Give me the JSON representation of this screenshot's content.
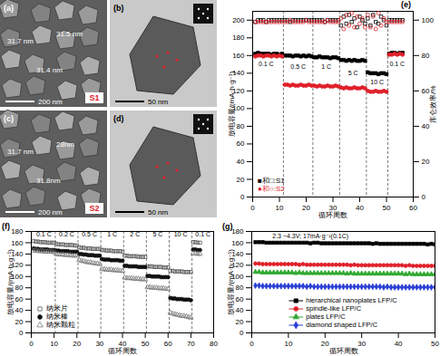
{
  "images": [
    {
      "panel": "(a)",
      "measurements": [
        "31.7 nm",
        "31.5 nm",
        "31.4 nm"
      ],
      "scale_bar": "200 nm",
      "sample": "S1"
    },
    {
      "panel": "(b)",
      "scale_bar": "50 nm"
    },
    {
      "panel": "(c)",
      "measurements": [
        "31.7 nm",
        "28nm",
        "31.8nm"
      ],
      "scale_bar": "200 nm",
      "sample": "S2"
    },
    {
      "panel": "(d)",
      "scale_bar": "50 nm"
    }
  ],
  "chart_data": [
    {
      "type": "scatter",
      "title": "(e)",
      "xlabel": "循环周数",
      "ylabel": "放电容量/(mA·h·g⁻¹)",
      "y2label": "库仑效率/%",
      "xlim": [
        0,
        60
      ],
      "xticks": [
        0,
        10,
        20,
        30,
        40,
        50,
        60
      ],
      "ylim": [
        0,
        210
      ],
      "yticks": [
        0,
        20,
        40,
        60,
        80,
        100,
        120,
        140,
        160,
        180,
        200
      ],
      "y2lim": [
        0,
        105
      ],
      "y2ticks": [
        0,
        20,
        40,
        60,
        80,
        100
      ],
      "grid": false,
      "legend": "bottom-left",
      "dividers": [
        11.5,
        22.5,
        32.5,
        42.5,
        50.5
      ],
      "annotations": [
        {
          "text": "0.1 C",
          "x": 5,
          "y": 150
        },
        {
          "text": "0.5 C",
          "x": 17,
          "y": 147
        },
        {
          "text": "1 C",
          "x": 27.5,
          "y": 147
        },
        {
          "text": "5 C",
          "x": 37.5,
          "y": 140
        },
        {
          "text": "10 C",
          "x": 46.5,
          "y": 130
        },
        {
          "text": "0.1 C",
          "x": 54,
          "y": 150
        }
      ],
      "x": [
        1,
        2,
        3,
        4,
        5,
        6,
        7,
        8,
        9,
        10,
        11,
        12,
        13,
        14,
        15,
        16,
        17,
        18,
        19,
        20,
        21,
        22,
        23,
        24,
        25,
        26,
        27,
        28,
        29,
        30,
        31,
        32,
        33,
        34,
        35,
        36,
        37,
        38,
        39,
        40,
        41,
        42,
        43,
        44,
        45,
        46,
        47,
        48,
        49,
        50,
        51,
        52,
        53,
        54,
        55,
        56
      ],
      "series": [
        {
          "name": "■和□:S1",
          "color": "#000000",
          "marker": "square",
          "values": [
            162,
            163,
            162,
            162,
            162,
            162,
            161,
            162,
            162,
            161,
            162,
            160,
            160,
            160,
            159,
            160,
            160,
            159,
            160,
            159,
            160,
            159,
            158,
            158,
            159,
            158,
            158,
            158,
            157,
            158,
            158,
            157,
            155,
            155,
            154,
            155,
            154,
            155,
            154,
            154,
            155,
            154,
            141,
            140,
            140,
            140,
            139,
            140,
            140,
            139,
            162,
            163,
            163,
            162,
            163,
            163
          ]
        },
        {
          "name": "■和□:S1",
          "color": "#000000",
          "marker": "square_open",
          "axis": "y2",
          "values": [
            99,
            100,
            100,
            100,
            99,
            100,
            100,
            100,
            100,
            100,
            100,
            100,
            100,
            99,
            100,
            100,
            100,
            100,
            100,
            100,
            100,
            100,
            100,
            100,
            100,
            100,
            99,
            100,
            100,
            100,
            100,
            100,
            97,
            102,
            98,
            103,
            99,
            101,
            96,
            102,
            100,
            98,
            101,
            97,
            103,
            99,
            98,
            102,
            100,
            97,
            100,
            100,
            100,
            100,
            100,
            100
          ]
        },
        {
          "name": "●和○:S2",
          "color": "#e0202a",
          "marker": "circle",
          "values": [
            159,
            160,
            160,
            159,
            160,
            160,
            159,
            160,
            159,
            160,
            159,
            127,
            127,
            126,
            127,
            126,
            126,
            127,
            126,
            126,
            127,
            126,
            126,
            125,
            126,
            125,
            125,
            126,
            125,
            125,
            126,
            125,
            124,
            123,
            124,
            123,
            123,
            124,
            123,
            123,
            124,
            123,
            120,
            119,
            119,
            120,
            119,
            119,
            120,
            119,
            161,
            161,
            162,
            161,
            162,
            161
          ]
        },
        {
          "name": "●和○:S2",
          "color": "#e0202a",
          "marker": "circle_open",
          "axis": "y2",
          "values": [
            99,
            99,
            99,
            99,
            99,
            99,
            99,
            99,
            99,
            99,
            99,
            99,
            99,
            100,
            99,
            99,
            99,
            99,
            99,
            100,
            99,
            99,
            99,
            99,
            99,
            99,
            99,
            100,
            99,
            99,
            99,
            99,
            101,
            95,
            103,
            97,
            104,
            96,
            102,
            98,
            101,
            96,
            103,
            96,
            102,
            95,
            104,
            97,
            101,
            99,
            99,
            99,
            99,
            99,
            99,
            99
          ]
        }
      ]
    },
    {
      "type": "scatter",
      "title": "(f)",
      "xlabel": "循环周数",
      "ylabel": "放电容量/(mA·h·g⁻¹)",
      "xlim": [
        0,
        80
      ],
      "xticks": [
        0,
        10,
        20,
        30,
        40,
        50,
        60,
        70,
        80
      ],
      "ylim": [
        0,
        180
      ],
      "yticks": [
        0,
        20,
        40,
        60,
        80,
        100,
        120,
        140,
        160,
        180
      ],
      "grid": false,
      "legend": "bottom-left",
      "dividers": [
        10.5,
        20.5,
        30.5,
        40.5,
        50.5,
        60.5,
        70.5
      ],
      "annotations": [
        {
          "text": "0.1 C",
          "x": 5.5,
          "y": 174
        },
        {
          "text": "0.2 C",
          "x": 15.5,
          "y": 174
        },
        {
          "text": "0.5 C",
          "x": 25.5,
          "y": 174
        },
        {
          "text": "1 C",
          "x": 35.5,
          "y": 174
        },
        {
          "text": "2 C",
          "x": 45.5,
          "y": 174
        },
        {
          "text": "5 C",
          "x": 55.5,
          "y": 174
        },
        {
          "text": "10 C",
          "x": 65.5,
          "y": 174
        },
        {
          "text": "0.1 C",
          "x": 75.3,
          "y": 174
        }
      ],
      "x": [
        1,
        2,
        3,
        4,
        5,
        6,
        7,
        8,
        9,
        10,
        11,
        12,
        13,
        14,
        15,
        16,
        17,
        18,
        19,
        20,
        21,
        22,
        23,
        24,
        25,
        26,
        27,
        28,
        29,
        30,
        31,
        32,
        33,
        34,
        35,
        36,
        37,
        38,
        39,
        40,
        41,
        42,
        43,
        44,
        45,
        46,
        47,
        48,
        49,
        50,
        51,
        52,
        53,
        54,
        55,
        56,
        57,
        58,
        59,
        60,
        61,
        62,
        63,
        64,
        65,
        66,
        67,
        68,
        69,
        70,
        71,
        72,
        73,
        74
      ],
      "series": [
        {
          "name": "纳米片",
          "color": "#555555",
          "marker": "square_open",
          "values": [
            163,
            162,
            162,
            161,
            161,
            161,
            160,
            160,
            160,
            160,
            158,
            157,
            157,
            157,
            156,
            156,
            156,
            156,
            155,
            155,
            152,
            151,
            151,
            150,
            150,
            150,
            149,
            149,
            149,
            149,
            147,
            147,
            146,
            146,
            146,
            145,
            145,
            145,
            145,
            144,
            137,
            137,
            136,
            136,
            136,
            136,
            135,
            135,
            135,
            135,
            118,
            118,
            118,
            117,
            117,
            117,
            117,
            116,
            116,
            116,
            110,
            110,
            109,
            109,
            109,
            109,
            108,
            108,
            108,
            108,
            161,
            161,
            160,
            160
          ]
        },
        {
          "name": "纳米棒",
          "color": "#111111",
          "marker": "circle",
          "values": [
            150,
            149,
            149,
            148,
            148,
            148,
            148,
            147,
            147,
            147,
            146,
            146,
            145,
            145,
            145,
            145,
            144,
            144,
            144,
            144,
            140,
            140,
            139,
            139,
            138,
            138,
            138,
            137,
            137,
            137,
            131,
            130,
            130,
            130,
            129,
            129,
            129,
            129,
            128,
            128,
            119,
            119,
            118,
            118,
            118,
            118,
            117,
            117,
            117,
            117,
            101,
            101,
            100,
            100,
            100,
            100,
            99,
            99,
            99,
            99,
            62,
            61,
            61,
            60,
            60,
            60,
            59,
            59,
            59,
            58,
            148,
            148,
            147,
            147
          ]
        },
        {
          "name": "纳米颗粒",
          "color": "#777777",
          "marker": "triangle_open",
          "values": [
            146,
            146,
            145,
            145,
            145,
            144,
            144,
            144,
            144,
            143,
            140,
            139,
            139,
            139,
            138,
            138,
            138,
            137,
            137,
            137,
            129,
            128,
            127,
            126,
            125,
            125,
            124,
            123,
            123,
            122,
            113,
            113,
            112,
            112,
            112,
            111,
            111,
            111,
            110,
            110,
            98,
            97,
            97,
            97,
            96,
            96,
            96,
            95,
            95,
            95,
            81,
            81,
            80,
            80,
            80,
            79,
            79,
            79,
            78,
            78,
            36,
            34,
            33,
            32,
            31,
            30,
            30,
            29,
            28,
            27,
            141,
            141,
            140,
            140
          ]
        }
      ]
    },
    {
      "type": "line",
      "title": "(g)",
      "xlabel": "循环周数",
      "ylabel": "放电容量/(mA·h·g⁻¹)",
      "xlim": [
        0,
        50
      ],
      "xticks": [
        0,
        10,
        20,
        30,
        40,
        50
      ],
      "ylim": [
        0,
        180
      ],
      "yticks": [
        0,
        20,
        40,
        60,
        80,
        100,
        120,
        140,
        160,
        180
      ],
      "grid": false,
      "legend": "bottom",
      "annotations": [
        {
          "text": "2.3 ~4.3V; 17mA·g⁻¹(0.1C)",
          "x": 16,
          "y": 172
        }
      ],
      "x": [
        1,
        2,
        3,
        4,
        5,
        6,
        7,
        8,
        9,
        10,
        11,
        12,
        13,
        14,
        15,
        16,
        17,
        18,
        19,
        20,
        21,
        22,
        23,
        24,
        25,
        26,
        27,
        28,
        29,
        30,
        31,
        32,
        33,
        34,
        35,
        36,
        37,
        38,
        39,
        40,
        41,
        42,
        43,
        44,
        45,
        46,
        47,
        48,
        49,
        50
      ],
      "series": [
        {
          "name": "hierarchical nanoplates LFP/C",
          "color": "#000000",
          "marker": "square",
          "values": [
            161,
            161,
            161,
            160,
            160,
            160,
            160,
            160,
            160,
            160,
            160,
            160,
            160,
            160,
            160,
            159,
            160,
            160,
            159,
            159,
            159,
            159,
            159,
            159,
            159,
            159,
            159,
            159,
            159,
            159,
            159,
            159,
            158,
            159,
            158,
            158,
            158,
            158,
            158,
            158,
            158,
            158,
            158,
            158,
            158,
            158,
            158,
            157,
            158,
            157
          ]
        },
        {
          "name": "spindle-like LFP/C",
          "color": "#e0202a",
          "marker": "circle",
          "values": [
            123,
            123,
            122,
            122,
            122,
            122,
            122,
            122,
            122,
            122,
            122,
            122,
            121,
            122,
            121,
            121,
            121,
            121,
            121,
            121,
            121,
            121,
            121,
            121,
            121,
            121,
            120,
            121,
            120,
            120,
            120,
            120,
            120,
            120,
            120,
            120,
            120,
            120,
            120,
            120,
            120,
            119,
            120,
            119,
            119,
            119,
            119,
            119,
            119,
            119
          ]
        },
        {
          "name": "plates LFP/C",
          "color": "#2fa82f",
          "marker": "triangle",
          "values": [
            108,
            108,
            107,
            107,
            107,
            107,
            107,
            107,
            107,
            107,
            107,
            106,
            107,
            106,
            106,
            106,
            106,
            106,
            106,
            106,
            106,
            106,
            106,
            106,
            106,
            105,
            106,
            105,
            105,
            105,
            105,
            105,
            105,
            105,
            105,
            105,
            105,
            105,
            105,
            105,
            105,
            104,
            105,
            104,
            104,
            104,
            104,
            104,
            104,
            104
          ]
        },
        {
          "name": "diamond shaped LFP/C",
          "color": "#2a3fd6",
          "marker": "diamond",
          "values": [
            84,
            84,
            83,
            83,
            83,
            83,
            83,
            83,
            83,
            83,
            83,
            83,
            83,
            83,
            82,
            83,
            82,
            82,
            82,
            82,
            82,
            82,
            82,
            82,
            82,
            82,
            82,
            82,
            82,
            82,
            82,
            82,
            82,
            82,
            82,
            81,
            82,
            81,
            81,
            81,
            81,
            81,
            81,
            81,
            81,
            81,
            81,
            81,
            81,
            81
          ]
        }
      ]
    }
  ]
}
